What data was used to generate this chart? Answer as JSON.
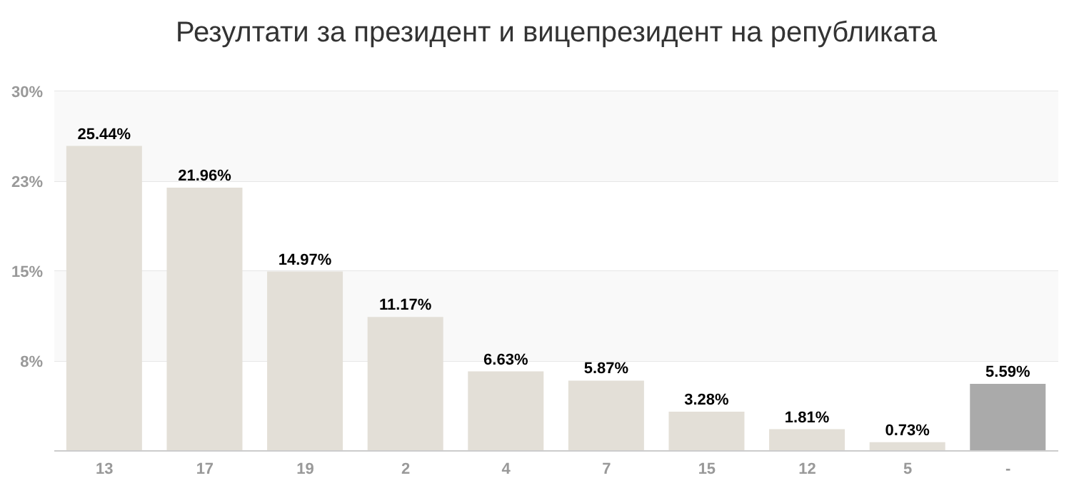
{
  "chart_data": {
    "type": "bar",
    "title": "Резултати за президент и вицепрезидент на републиката",
    "categories": [
      "13",
      "17",
      "19",
      "2",
      "4",
      "7",
      "15",
      "12",
      "5",
      "-"
    ],
    "values": [
      25.44,
      21.96,
      14.97,
      11.17,
      6.63,
      5.87,
      3.28,
      1.81,
      0.73,
      5.59
    ],
    "colors": [
      "#e3dfd7",
      "#e3dfd7",
      "#e3dfd7",
      "#e3dfd7",
      "#e3dfd7",
      "#e3dfd7",
      "#e3dfd7",
      "#e3dfd7",
      "#e3dfd7",
      "#aaaaaa"
    ],
    "value_labels": [
      "25.44%",
      "21.96%",
      "14.97%",
      "11.17%",
      "6.63%",
      "5.87%",
      "3.28%",
      "1.81%",
      "0.73%",
      "5.59%"
    ],
    "ylim": [
      0,
      30
    ],
    "yticks": [
      {
        "value": 7.5,
        "label": "8%"
      },
      {
        "value": 15,
        "label": "15%"
      },
      {
        "value": 22.5,
        "label": "23%"
      },
      {
        "value": 30,
        "label": "30%"
      }
    ],
    "bands": [
      {
        "axis": "y",
        "from": 7.5,
        "to": 15,
        "color": "#f9f9f9"
      },
      {
        "axis": "y",
        "from": 22.5,
        "to": 30,
        "color": "#f9f9f9"
      }
    ],
    "grid": "y"
  }
}
